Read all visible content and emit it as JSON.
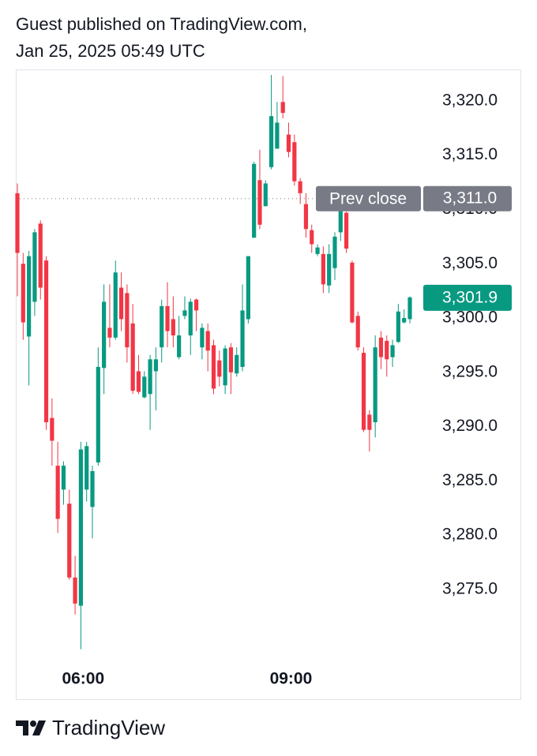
{
  "header": {
    "line1": "Guest published on TradingView.com,",
    "line2": "Jan 25, 2025 05:49 UTC"
  },
  "chart_data": {
    "type": "candlestick",
    "categories": [
      null,
      null,
      null,
      null,
      null,
      null,
      null,
      null,
      null,
      null,
      null,
      null,
      null,
      null,
      null,
      null,
      null,
      null,
      null,
      null,
      null,
      null,
      null,
      null,
      null,
      null,
      null,
      null,
      null,
      null,
      null,
      null,
      null,
      null,
      null,
      null,
      null,
      null,
      null,
      null,
      null,
      null,
      null,
      null,
      null,
      null,
      null,
      null,
      null,
      null,
      null,
      null,
      null,
      null,
      null,
      null,
      null,
      null,
      null,
      null,
      null,
      null,
      null,
      null,
      null,
      null,
      null,
      null,
      null
    ],
    "open": [
      3311.5,
      3305.0,
      3298.3,
      3301.5,
      3308.7,
      3305.3,
      3290.8,
      3286.4,
      3284.2,
      3282.9,
      3276.1,
      3273.5,
      3284.2,
      3282.6,
      3286.7,
      3295.4,
      3299.1,
      3298.2,
      3302.8,
      3302.3,
      3299.5,
      3295.1,
      3292.7,
      3293.0,
      3295.1,
      3297.3,
      3301.1,
      3299.9,
      3296.4,
      3300.2,
      3298.4,
      3301.7,
      3297.3,
      3298.8,
      3297.5,
      3296.1,
      3293.8,
      3297.3,
      3294.9,
      3295.5,
      3299.9,
      3307.4,
      3312.7,
      3310.3,
      3313.9,
      3315.6,
      3319.9,
      3316.9,
      3316.2,
      3312.6,
      3310.5,
      3308.1,
      3305.9,
      3305.9,
      3303.0,
      3304.6,
      3307.9,
      3309.7,
      3305.1,
      3300.2,
      3296.8,
      3291.1,
      3290.4,
      3298.2,
      3297.9,
      3296.4,
      3297.8,
      3299.6,
      3299.9
    ],
    "high": [
      3312.4,
      3306.0,
      3306.2,
      3308.2,
      3309.0,
      3305.7,
      3292.6,
      3288.6,
      3286.8,
      3284.2,
      3278.1,
      3288.6,
      3288.6,
      3286.4,
      3297.3,
      3303.1,
      3303.1,
      3305.3,
      3304.2,
      3303.1,
      3301.3,
      3296.6,
      3295.1,
      3296.6,
      3297.3,
      3301.7,
      3303.3,
      3302.0,
      3300.2,
      3302.0,
      3301.8,
      3301.8,
      3299.5,
      3299.5,
      3298.0,
      3297.0,
      3297.5,
      3297.7,
      3297.3,
      3303.1,
      3305.7,
      3314.4,
      3315.5,
      3312.7,
      3322.4,
      3319.9,
      3322.3,
      3318.0,
      3316.9,
      3312.9,
      3311.5,
      3308.6,
      3306.8,
      3306.6,
      3306.8,
      3307.9,
      3310.8,
      3309.8,
      3305.3,
      3300.6,
      3297.3,
      3291.5,
      3298.4,
      3298.8,
      3298.4,
      3298.0,
      3301.3,
      3300.8,
      3302.0
    ],
    "low": [
      3302.0,
      3298.0,
      3293.8,
      3300.2,
      3301.7,
      3289.7,
      3286.4,
      3280.2,
      3282.8,
      3275.9,
      3272.7,
      3269.5,
      3283.1,
      3279.7,
      3286.4,
      3293.0,
      3297.3,
      3298.0,
      3298.8,
      3295.9,
      3293.0,
      3293.0,
      3292.6,
      3289.7,
      3291.5,
      3295.9,
      3297.3,
      3297.3,
      3296.2,
      3299.9,
      3296.6,
      3298.8,
      3296.2,
      3295.1,
      3293.0,
      3293.7,
      3293.0,
      3293.0,
      3294.6,
      3295.1,
      3299.5,
      3307.4,
      3308.2,
      3310.3,
      3313.7,
      3315.6,
      3318.4,
      3314.8,
      3312.2,
      3310.5,
      3307.4,
      3306.0,
      3305.7,
      3302.3,
      3302.3,
      3303.5,
      3307.1,
      3306.0,
      3299.5,
      3297.0,
      3289.5,
      3287.7,
      3289.0,
      3295.3,
      3294.6,
      3295.5,
      3297.7,
      3299.5,
      3299.5
    ],
    "close": [
      3306.0,
      3299.6,
      3305.7,
      3307.9,
      3302.8,
      3290.4,
      3288.7,
      3281.5,
      3286.4,
      3276.1,
      3273.7,
      3287.9,
      3288.2,
      3285.9,
      3295.5,
      3301.5,
      3298.2,
      3304.2,
      3299.9,
      3297.3,
      3293.3,
      3293.2,
      3294.6,
      3296.2,
      3296.2,
      3301.1,
      3298.8,
      3298.4,
      3298.4,
      3300.7,
      3301.5,
      3300.7,
      3299.1,
      3297.0,
      3293.5,
      3294.6,
      3297.2,
      3295.0,
      3296.6,
      3300.7,
      3305.7,
      3314.2,
      3308.6,
      3312.4,
      3318.6,
      3318.0,
      3318.9,
      3315.3,
      3312.6,
      3311.5,
      3308.2,
      3306.8,
      3306.5,
      3303.1,
      3305.9,
      3307.5,
      3310.0,
      3306.4,
      3299.6,
      3297.3,
      3289.7,
      3289.7,
      3297.3,
      3296.4,
      3296.2,
      3297.5,
      3300.6,
      3300.0,
      3301.9
    ],
    "up_color": "#089981",
    "down_color": "#f23645",
    "ylim": [
      3268.6,
      3322.9
    ],
    "yticks": [
      {
        "value": 3275,
        "label": "3,275.0"
      },
      {
        "value": 3280,
        "label": "3,280.0"
      },
      {
        "value": 3285,
        "label": "3,285.0"
      },
      {
        "value": 3290,
        "label": "3,290.0"
      },
      {
        "value": 3295,
        "label": "3,295.0"
      },
      {
        "value": 3300,
        "label": "3,300.0"
      },
      {
        "value": 3305,
        "label": "3,305.0"
      },
      {
        "value": 3310,
        "label": "3,310.0"
      },
      {
        "value": 3315,
        "label": "3,315.0"
      },
      {
        "value": 3320,
        "label": "3,320.0"
      }
    ],
    "xlim": [
      0,
      68
    ],
    "xticks": [
      {
        "value": 11.4,
        "label": "06:00"
      },
      {
        "value": 47.4,
        "label": "09:00"
      }
    ],
    "prev_close": {
      "label": "Prev close",
      "value": 3311.0,
      "value_label": "3,311.0",
      "color": "#787b86"
    },
    "last_price": {
      "value": 3301.9,
      "value_label": "3,301.9",
      "color": "#089981"
    }
  },
  "footer": {
    "brand": "TradingView"
  }
}
